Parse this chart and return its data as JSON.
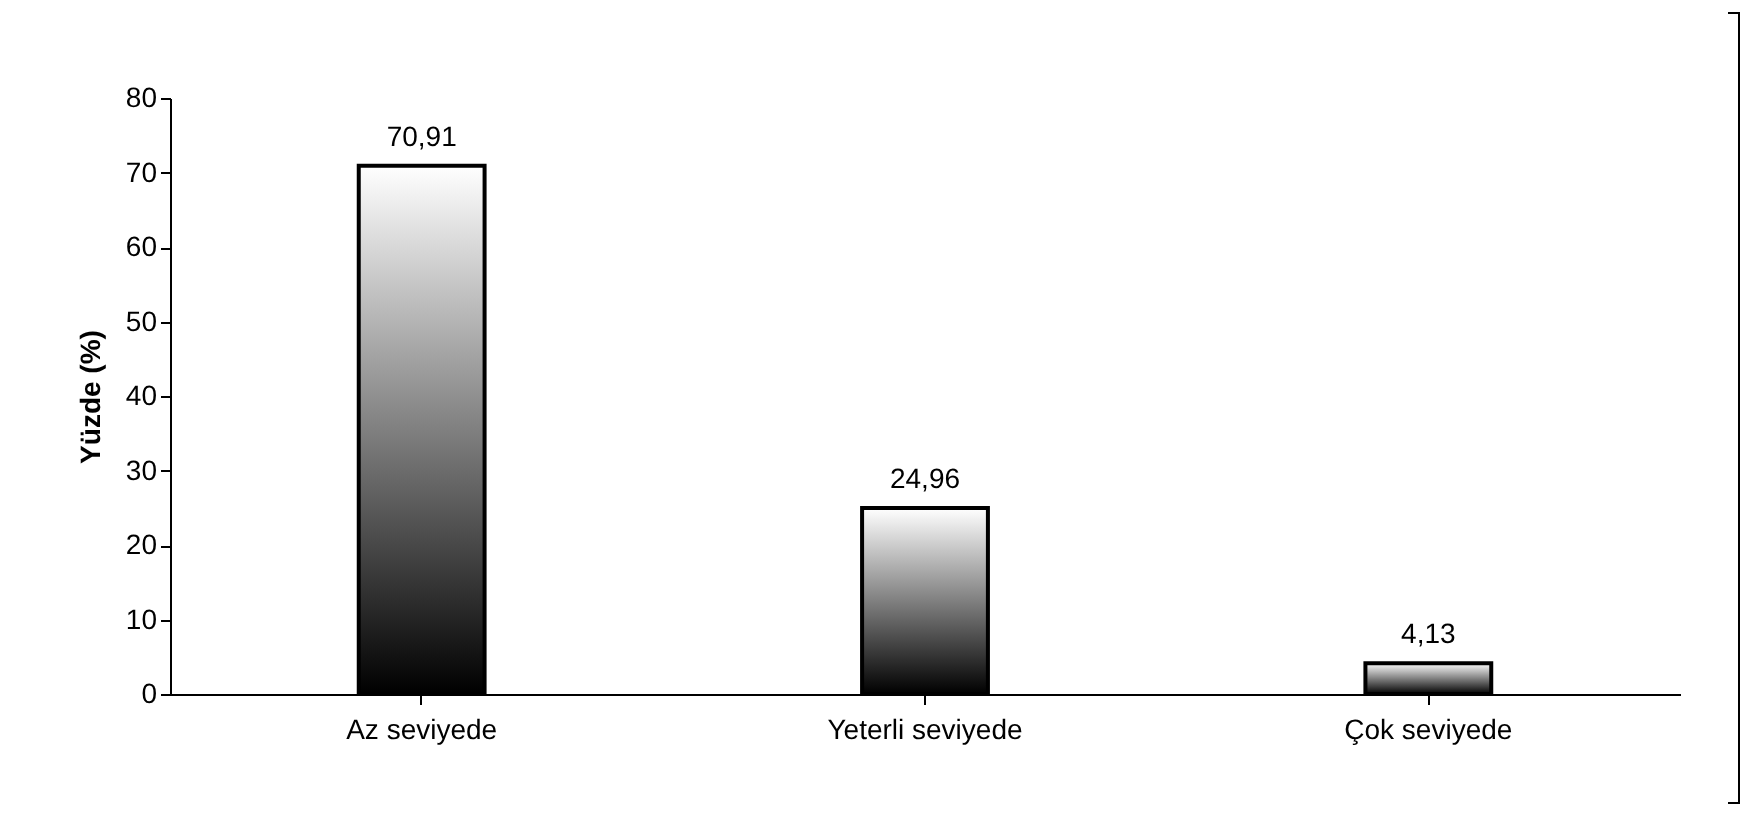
{
  "chart_data": {
    "type": "bar",
    "ylabel": "Yüzde (%)",
    "categories": [
      "Az seviyede",
      "Yeterli seviyede",
      "Çok seviyede"
    ],
    "values": [
      70.91,
      24.96,
      4.13
    ],
    "value_labels": [
      "70,91",
      "24,96",
      "4,13"
    ],
    "color": "#000000",
    "ylim": [
      0,
      80
    ],
    "yticks": [
      0,
      10,
      20,
      30,
      40,
      50,
      60,
      70,
      80
    ],
    "grid": false
  }
}
